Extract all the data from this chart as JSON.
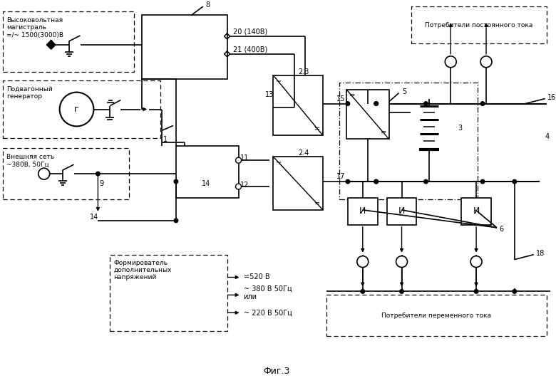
{
  "bg": "#ffffff",
  "title": "Фиг.3",
  "hv_label": "Высоковольтная\nмагистраль\n=/~ 1500(3000)В",
  "gen_label": "Подвагонный\nгенератор",
  "ext_label": "Внешняя сеть\n~380В, 50Гц",
  "dc_label": "Потребители постоянного тока",
  "ac_label": "Потребители переменного тока",
  "form_label": "Формирователь\nдополнительных\nнапряжений",
  "v520": "=520 В",
  "v380": "~ 380 В 50Гц\nили",
  "v220": "~ 220 В 50Гц",
  "n8": "8",
  "n20": "20 (140В)",
  "n21": "21 (400В)",
  "n1": "1",
  "n9": "9",
  "n11": "11",
  "n12": "12",
  "n13": "13",
  "n14": "14",
  "n15": "15",
  "n17": "17",
  "n23": "2.3",
  "n24": "2.4",
  "n3": "3",
  "n4": "4",
  "n5": "5",
  "n6": "6",
  "n16": "16",
  "n18": "18",
  "ng": "г"
}
